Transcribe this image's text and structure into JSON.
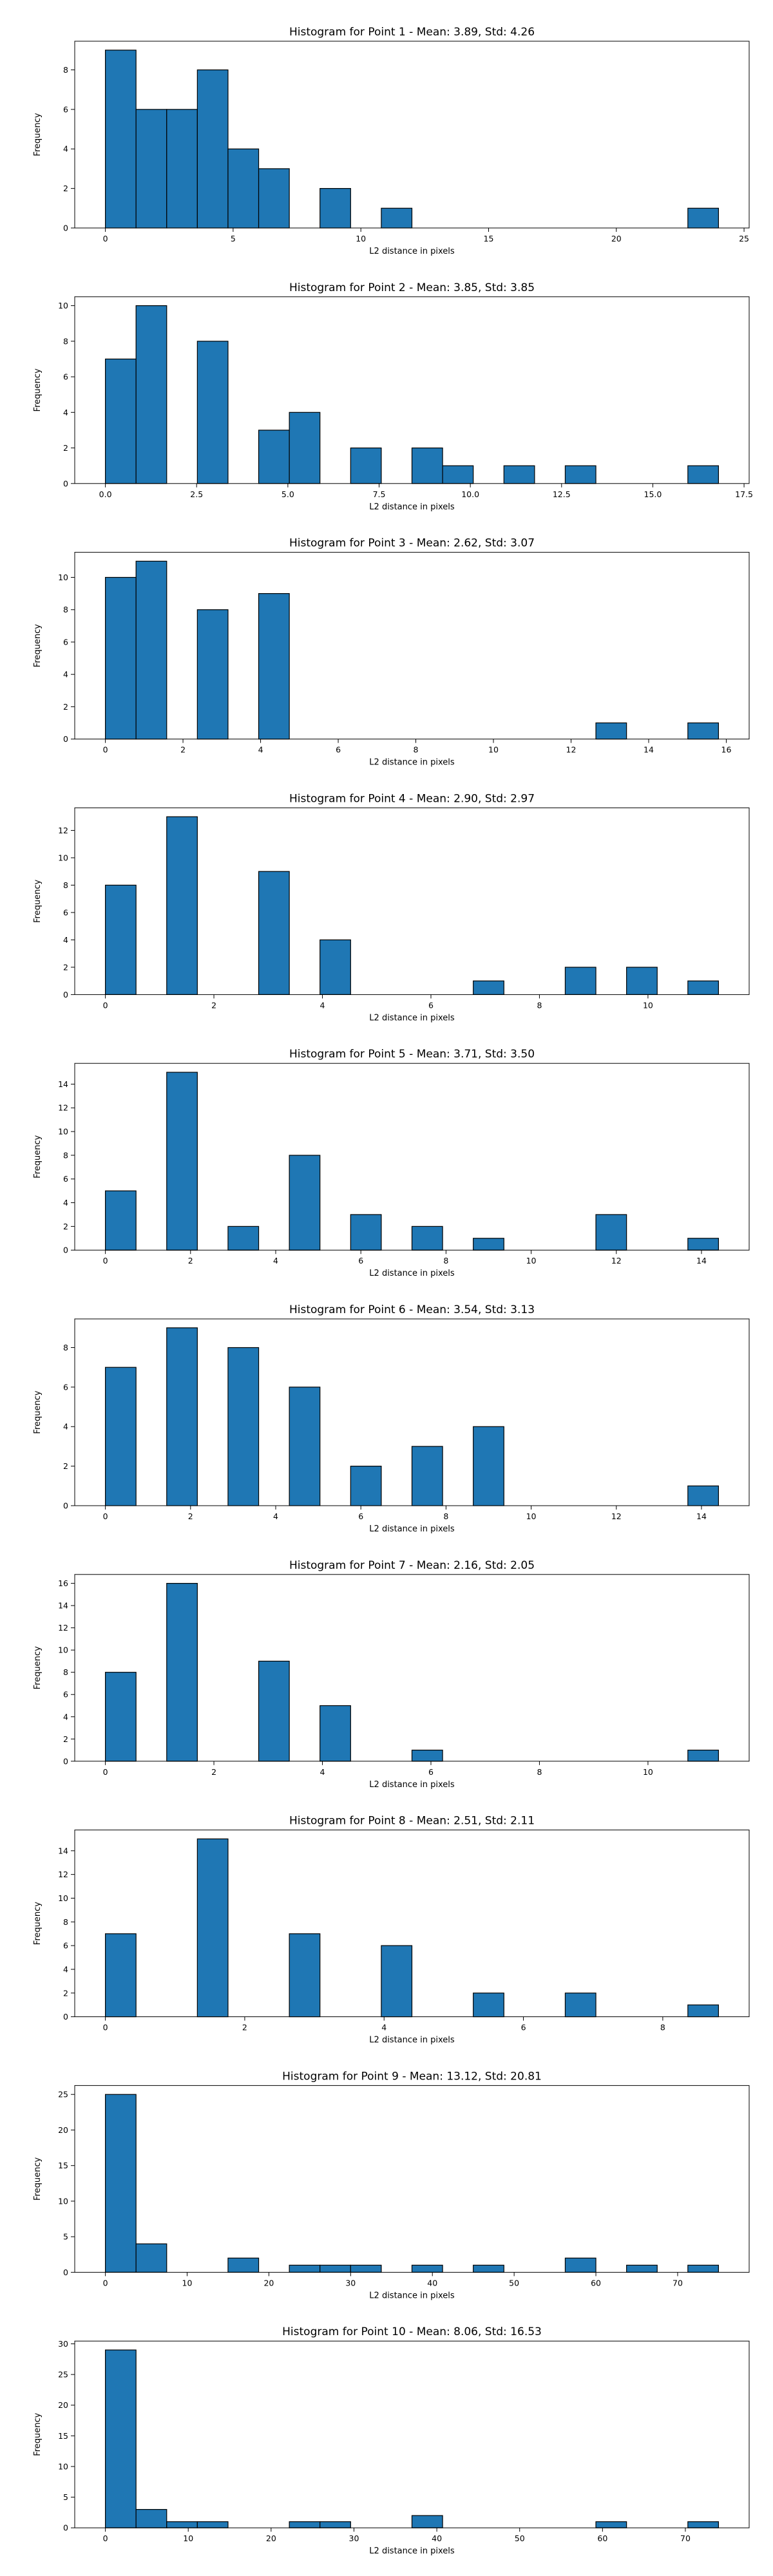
{
  "chart_data": [
    {
      "type": "bar",
      "title": "Histogram for Point 1 - Mean: 3.89, Std: 4.26",
      "xlabel": "L2 distance in pixels",
      "ylabel": "Frequency",
      "xlim": [
        -1.2,
        25.2
      ],
      "ylim": [
        0,
        9.45
      ],
      "xticks": [
        0,
        5,
        10,
        15,
        20,
        25
      ],
      "yticks": [
        0,
        2,
        4,
        6,
        8
      ],
      "bin_edges": [
        0.0,
        1.2,
        2.4,
        3.6,
        4.8,
        6.0,
        7.2,
        8.4,
        9.6,
        10.8,
        12.0,
        13.2,
        14.4,
        15.6,
        16.8,
        18.0,
        19.2,
        20.4,
        21.6,
        22.8,
        24.0
      ],
      "values": [
        9,
        6,
        6,
        8,
        4,
        3,
        0,
        2,
        0,
        1,
        0,
        0,
        0,
        0,
        0,
        0,
        0,
        0,
        0,
        1
      ]
    },
    {
      "type": "bar",
      "title": "Histogram for Point 2 - Mean: 3.85, Std: 3.85",
      "xlabel": "L2 distance in pixels",
      "ylabel": "Frequency",
      "xlim": [
        -0.84,
        17.64
      ],
      "ylim": [
        0,
        10.5
      ],
      "xticks": [
        0.0,
        2.5,
        5.0,
        7.5,
        10.0,
        12.5,
        15.0,
        17.5
      ],
      "xtick_labels": [
        "0.0",
        "2.5",
        "5.0",
        "7.5",
        "10.0",
        "12.5",
        "15.0",
        "17.5"
      ],
      "yticks": [
        0,
        2,
        4,
        6,
        8,
        10
      ],
      "bin_edges": [
        0.0,
        0.84,
        1.68,
        2.52,
        3.36,
        4.2,
        5.04,
        5.88,
        6.72,
        7.56,
        8.4,
        9.24,
        10.08,
        10.92,
        11.76,
        12.6,
        13.44,
        14.28,
        15.12,
        15.96,
        16.8
      ],
      "values": [
        7,
        10,
        0,
        8,
        0,
        3,
        4,
        0,
        2,
        0,
        2,
        1,
        0,
        1,
        0,
        1,
        0,
        0,
        0,
        1
      ]
    },
    {
      "type": "bar",
      "title": "Histogram for Point 3 - Mean: 2.62, Std: 3.07",
      "xlabel": "L2 distance in pixels",
      "ylabel": "Frequency",
      "xlim": [
        -0.79,
        16.59
      ],
      "ylim": [
        0,
        11.55
      ],
      "xticks": [
        0,
        2,
        4,
        6,
        8,
        10,
        12,
        14,
        16
      ],
      "yticks": [
        0,
        2,
        4,
        6,
        8,
        10
      ],
      "bin_edges": [
        0.0,
        0.79,
        1.58,
        2.37,
        3.16,
        3.95,
        4.74,
        5.53,
        6.32,
        7.11,
        7.9,
        8.69,
        9.48,
        10.27,
        11.06,
        11.85,
        12.64,
        13.43,
        14.22,
        15.01,
        15.8
      ],
      "values": [
        10,
        11,
        0,
        8,
        0,
        9,
        0,
        0,
        0,
        0,
        0,
        0,
        0,
        0,
        0,
        0,
        1,
        0,
        0,
        1
      ]
    },
    {
      "type": "bar",
      "title": "Histogram for Point 4 - Mean: 2.90, Std: 2.97",
      "xlabel": "L2 distance in pixels",
      "ylabel": "Frequency",
      "xlim": [
        -0.565,
        11.865
      ],
      "ylim": [
        0,
        13.65
      ],
      "xticks": [
        0,
        2,
        4,
        6,
        8,
        10
      ],
      "yticks": [
        0,
        2,
        4,
        6,
        8,
        10,
        12
      ],
      "bin_edges": [
        0.0,
        0.565,
        1.13,
        1.695,
        2.26,
        2.825,
        3.39,
        3.955,
        4.52,
        5.085,
        5.65,
        6.215,
        6.78,
        7.345,
        7.91,
        8.475,
        9.04,
        9.605,
        10.17,
        10.735,
        11.3
      ],
      "values": [
        8,
        0,
        13,
        0,
        0,
        9,
        0,
        4,
        0,
        0,
        0,
        0,
        1,
        0,
        0,
        2,
        0,
        2,
        0,
        1
      ]
    },
    {
      "type": "bar",
      "title": "Histogram for Point 5 - Mean: 3.71, Std: 3.50",
      "xlabel": "L2 distance in pixels",
      "ylabel": "Frequency",
      "xlim": [
        -0.72,
        15.12
      ],
      "ylim": [
        0,
        15.75
      ],
      "xticks": [
        0,
        2,
        4,
        6,
        8,
        10,
        12,
        14
      ],
      "yticks": [
        0,
        2,
        4,
        6,
        8,
        10,
        12,
        14
      ],
      "bin_edges": [
        0.0,
        0.72,
        1.44,
        2.16,
        2.88,
        3.6,
        4.32,
        5.04,
        5.76,
        6.48,
        7.2,
        7.92,
        8.64,
        9.36,
        10.08,
        10.8,
        11.52,
        12.24,
        12.96,
        13.68,
        14.4
      ],
      "values": [
        5,
        0,
        15,
        0,
        2,
        0,
        8,
        0,
        3,
        0,
        2,
        0,
        1,
        0,
        0,
        0,
        3,
        0,
        0,
        1
      ]
    },
    {
      "type": "bar",
      "title": "Histogram for Point 6 - Mean: 3.54, Std: 3.13",
      "xlabel": "L2 distance in pixels",
      "ylabel": "Frequency",
      "xlim": [
        -0.72,
        15.12
      ],
      "ylim": [
        0,
        9.45
      ],
      "xticks": [
        0,
        2,
        4,
        6,
        8,
        10,
        12,
        14
      ],
      "yticks": [
        0,
        2,
        4,
        6,
        8
      ],
      "bin_edges": [
        0.0,
        0.72,
        1.44,
        2.16,
        2.88,
        3.6,
        4.32,
        5.04,
        5.76,
        6.48,
        7.2,
        7.92,
        8.64,
        9.36,
        10.08,
        10.8,
        11.52,
        12.24,
        12.96,
        13.68,
        14.4
      ],
      "values": [
        7,
        0,
        9,
        0,
        8,
        0,
        6,
        0,
        2,
        0,
        3,
        0,
        4,
        0,
        0,
        0,
        0,
        0,
        0,
        1
      ]
    },
    {
      "type": "bar",
      "title": "Histogram for Point 7 - Mean: 2.16, Std: 2.05",
      "xlabel": "L2 distance in pixels",
      "ylabel": "Frequency",
      "xlim": [
        -0.565,
        11.865
      ],
      "ylim": [
        0,
        16.8
      ],
      "xticks": [
        0,
        2,
        4,
        6,
        8,
        10
      ],
      "yticks": [
        0,
        2,
        4,
        6,
        8,
        10,
        12,
        14,
        16
      ],
      "bin_edges": [
        0.0,
        0.565,
        1.13,
        1.695,
        2.26,
        2.825,
        3.39,
        3.955,
        4.52,
        5.085,
        5.65,
        6.215,
        6.78,
        7.345,
        7.91,
        8.475,
        9.04,
        9.605,
        10.17,
        10.735,
        11.3
      ],
      "values": [
        8,
        0,
        16,
        0,
        0,
        9,
        0,
        5,
        0,
        0,
        1,
        0,
        0,
        0,
        0,
        0,
        0,
        0,
        0,
        1
      ]
    },
    {
      "type": "bar",
      "title": "Histogram for Point 8 - Mean: 2.51, Std: 2.11",
      "xlabel": "L2 distance in pixels",
      "ylabel": "Frequency",
      "xlim": [
        -0.44,
        9.24
      ],
      "ylim": [
        0,
        15.75
      ],
      "xticks": [
        0,
        2,
        4,
        6,
        8
      ],
      "yticks": [
        0,
        2,
        4,
        6,
        8,
        10,
        12,
        14
      ],
      "bin_edges": [
        0.0,
        0.44,
        0.88,
        1.32,
        1.76,
        2.2,
        2.64,
        3.08,
        3.52,
        3.96,
        4.4,
        4.84,
        5.28,
        5.72,
        6.16,
        6.6,
        7.04,
        7.48,
        7.92,
        8.36,
        8.8
      ],
      "values": [
        7,
        0,
        0,
        15,
        0,
        0,
        7,
        0,
        0,
        6,
        0,
        0,
        2,
        0,
        0,
        2,
        0,
        0,
        0,
        1
      ]
    },
    {
      "type": "bar",
      "title": "Histogram for Point 9 - Mean: 13.12, Std: 20.81",
      "xlabel": "L2 distance in pixels",
      "ylabel": "Frequency",
      "xlim": [
        -3.75,
        78.75
      ],
      "ylim": [
        0,
        26.25
      ],
      "xticks": [
        0,
        10,
        20,
        30,
        40,
        50,
        60,
        70
      ],
      "yticks": [
        0,
        5,
        10,
        15,
        20,
        25
      ],
      "bin_edges": [
        0.0,
        3.75,
        7.5,
        11.25,
        15.0,
        18.75,
        22.5,
        26.25,
        30.0,
        33.75,
        37.5,
        41.25,
        45.0,
        48.75,
        52.5,
        56.25,
        60.0,
        63.75,
        67.5,
        71.25,
        75.0
      ],
      "values": [
        25,
        4,
        0,
        0,
        2,
        0,
        1,
        1,
        1,
        0,
        1,
        0,
        1,
        0,
        0,
        2,
        0,
        1,
        0,
        1
      ]
    },
    {
      "type": "bar",
      "title": "Histogram for Point 10 - Mean: 8.06, Std: 16.53",
      "xlabel": "L2 distance in pixels",
      "ylabel": "Frequency",
      "xlim": [
        -3.7,
        77.7
      ],
      "ylim": [
        0,
        30.45
      ],
      "xticks": [
        0,
        10,
        20,
        30,
        40,
        50,
        60,
        70
      ],
      "yticks": [
        0,
        5,
        10,
        15,
        20,
        25,
        30
      ],
      "bin_edges": [
        0.0,
        3.7,
        7.4,
        11.1,
        14.8,
        18.5,
        22.2,
        25.9,
        29.6,
        33.3,
        37.0,
        40.7,
        44.4,
        48.1,
        51.8,
        55.5,
        59.2,
        62.9,
        66.6,
        70.3,
        74.0
      ],
      "values": [
        29,
        3,
        1,
        1,
        0,
        0,
        1,
        1,
        0,
        0,
        2,
        0,
        0,
        0,
        0,
        0,
        1,
        0,
        0,
        1
      ]
    }
  ]
}
